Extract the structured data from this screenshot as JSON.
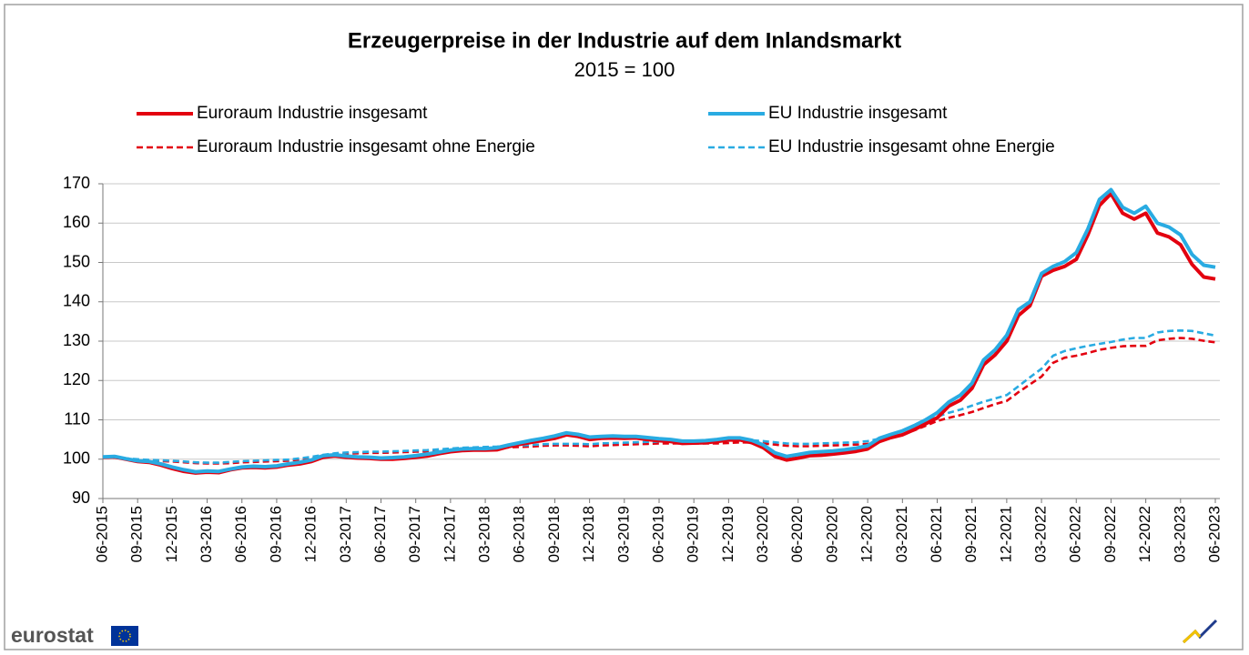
{
  "chart_data": {
    "type": "line",
    "title": "Erzeugerpreise in der Industrie auf dem Inlandsmarkt",
    "subtitle": "2015 = 100",
    "logo": "eurostat",
    "ylim": [
      90,
      170
    ],
    "yticks": [
      90,
      100,
      110,
      120,
      130,
      140,
      150,
      160,
      170
    ],
    "grid": true,
    "categories": [
      "06-2015",
      null,
      null,
      "09-2015",
      null,
      null,
      "12-2015",
      null,
      null,
      "03-2016",
      null,
      null,
      "06-2016",
      null,
      null,
      "09-2016",
      null,
      null,
      "12-2016",
      null,
      null,
      "03-2017",
      null,
      null,
      "06-2017",
      null,
      null,
      "09-2017",
      null,
      null,
      "12-2017",
      null,
      null,
      "03-2018",
      null,
      null,
      "06-2018",
      null,
      null,
      "09-2018",
      null,
      null,
      "12-2018",
      null,
      null,
      "03-2019",
      null,
      null,
      "06-2019",
      null,
      null,
      "09-2019",
      null,
      null,
      "12-2019",
      null,
      null,
      "03-2020",
      null,
      null,
      "06-2020",
      null,
      null,
      "09-2020",
      null,
      null,
      "12-2020",
      null,
      null,
      "03-2021",
      null,
      null,
      "06-2021",
      null,
      null,
      "09-2021",
      null,
      null,
      "12-2021",
      null,
      null,
      "03-2022",
      null,
      null,
      "06-2022",
      null,
      null,
      "09-2022",
      null,
      null,
      "12-2022",
      null,
      null,
      "03-2023",
      null,
      null,
      "06-2023"
    ],
    "series": [
      {
        "name": "Euroraum Industrie insgesamt",
        "color": "#e3000f",
        "style": "solid",
        "values": [
          100.5,
          100.6,
          100.0,
          99.4,
          99.2,
          98.5,
          97.6,
          96.9,
          96.5,
          96.7,
          96.6,
          97.3,
          97.8,
          97.9,
          97.8,
          98.0,
          98.5,
          98.8,
          99.4,
          100.5,
          100.8,
          100.5,
          100.3,
          100.2,
          100.0,
          100.0,
          100.2,
          100.5,
          100.8,
          101.4,
          101.9,
          102.2,
          102.3,
          102.3,
          102.4,
          103.2,
          103.8,
          104.3,
          104.8,
          105.3,
          106.2,
          105.8,
          105.0,
          105.3,
          105.4,
          105.3,
          105.4,
          105.0,
          104.7,
          104.5,
          104.0,
          104.1,
          104.2,
          104.5,
          104.9,
          104.9,
          104.2,
          102.9,
          100.7,
          99.8,
          100.3,
          100.9,
          101.0,
          101.3,
          101.6,
          102.0,
          102.6,
          104.5,
          105.5,
          106.2,
          107.5,
          109.0,
          110.5,
          113.5,
          115.0,
          118.0,
          124.0,
          126.5,
          130.0,
          136.5,
          139.0,
          146.5,
          148.0,
          149.0,
          150.8,
          157.0,
          164.5,
          167.5,
          162.5,
          161.0,
          162.5,
          157.5,
          156.5,
          154.5,
          149.5,
          146.3,
          145.8
        ]
      },
      {
        "name": "EU Industrie insgesamt",
        "color": "#29abe2",
        "style": "solid",
        "values": [
          100.6,
          100.7,
          100.1,
          99.6,
          99.4,
          98.8,
          98.0,
          97.3,
          96.8,
          97.0,
          96.9,
          97.5,
          98.0,
          98.2,
          98.1,
          98.3,
          98.8,
          99.2,
          99.8,
          100.9,
          101.1,
          100.8,
          100.6,
          100.5,
          100.3,
          100.4,
          100.6,
          100.9,
          101.3,
          101.8,
          102.3,
          102.6,
          102.7,
          102.7,
          102.9,
          103.6,
          104.2,
          104.8,
          105.3,
          105.9,
          106.7,
          106.3,
          105.6,
          105.8,
          105.9,
          105.8,
          105.8,
          105.5,
          105.2,
          105.0,
          104.6,
          104.6,
          104.7,
          105.0,
          105.4,
          105.4,
          104.8,
          103.6,
          101.6,
          100.7,
          101.2,
          101.7,
          101.9,
          102.1,
          102.4,
          102.8,
          103.4,
          105.3,
          106.3,
          107.2,
          108.5,
          110.0,
          111.8,
          114.5,
          116.3,
          119.3,
          125.2,
          127.8,
          131.5,
          138.0,
          140.0,
          147.2,
          149.0,
          150.2,
          152.5,
          158.5,
          166.0,
          168.5,
          164.0,
          162.5,
          164.3,
          160.0,
          159.0,
          157.0,
          152.0,
          149.3,
          148.8
        ]
      },
      {
        "name": "Euroraum Industrie insgesamt ohne Energie",
        "color": "#e3000f",
        "style": "dashed",
        "values": [
          100.5,
          100.4,
          100.0,
          99.8,
          99.6,
          99.5,
          99.4,
          99.2,
          99.0,
          98.9,
          98.9,
          99.0,
          99.2,
          99.3,
          99.4,
          99.5,
          99.6,
          99.9,
          100.3,
          100.8,
          101.2,
          101.4,
          101.5,
          101.6,
          101.6,
          101.7,
          101.8,
          101.9,
          102.0,
          102.1,
          102.3,
          102.5,
          102.6,
          102.7,
          102.8,
          103.0,
          103.1,
          103.2,
          103.4,
          103.5,
          103.5,
          103.4,
          103.3,
          103.5,
          103.6,
          103.7,
          103.8,
          103.9,
          104.0,
          104.0,
          104.0,
          104.0,
          104.0,
          104.0,
          104.1,
          104.3,
          104.2,
          104.0,
          103.7,
          103.4,
          103.3,
          103.3,
          103.4,
          103.5,
          103.6,
          103.7,
          103.9,
          104.5,
          105.5,
          106.3,
          107.3,
          108.5,
          109.7,
          110.5,
          111.2,
          112.0,
          113.0,
          114.0,
          114.8,
          117.0,
          119.0,
          121.0,
          124.5,
          125.8,
          126.3,
          127.0,
          127.8,
          128.3,
          128.7,
          128.8,
          128.8,
          130.2,
          130.6,
          130.8,
          130.6,
          130.1,
          129.7
        ]
      },
      {
        "name": "EU Industrie insgesamt ohne Energie",
        "color": "#29abe2",
        "style": "dashed",
        "values": [
          100.6,
          100.5,
          100.2,
          100.0,
          99.8,
          99.7,
          99.6,
          99.4,
          99.2,
          99.1,
          99.1,
          99.3,
          99.5,
          99.6,
          99.7,
          99.8,
          99.9,
          100.2,
          100.6,
          101.1,
          101.5,
          101.7,
          101.8,
          101.9,
          101.9,
          102.0,
          102.1,
          102.2,
          102.3,
          102.5,
          102.7,
          102.9,
          103.0,
          103.1,
          103.2,
          103.4,
          103.5,
          103.6,
          103.8,
          103.9,
          103.9,
          103.9,
          103.8,
          104.0,
          104.1,
          104.2,
          104.3,
          104.4,
          104.5,
          104.5,
          104.5,
          104.5,
          104.5,
          104.6,
          104.7,
          104.9,
          104.8,
          104.6,
          104.3,
          104.0,
          103.9,
          103.9,
          104.0,
          104.1,
          104.2,
          104.3,
          104.6,
          105.2,
          106.2,
          107.2,
          108.2,
          109.5,
          110.8,
          111.8,
          112.6,
          113.6,
          114.6,
          115.4,
          116.3,
          118.5,
          120.8,
          123.0,
          126.3,
          127.5,
          128.2,
          128.8,
          129.3,
          129.8,
          130.4,
          130.8,
          130.8,
          132.2,
          132.6,
          132.7,
          132.6,
          132.0,
          131.4
        ]
      }
    ]
  }
}
